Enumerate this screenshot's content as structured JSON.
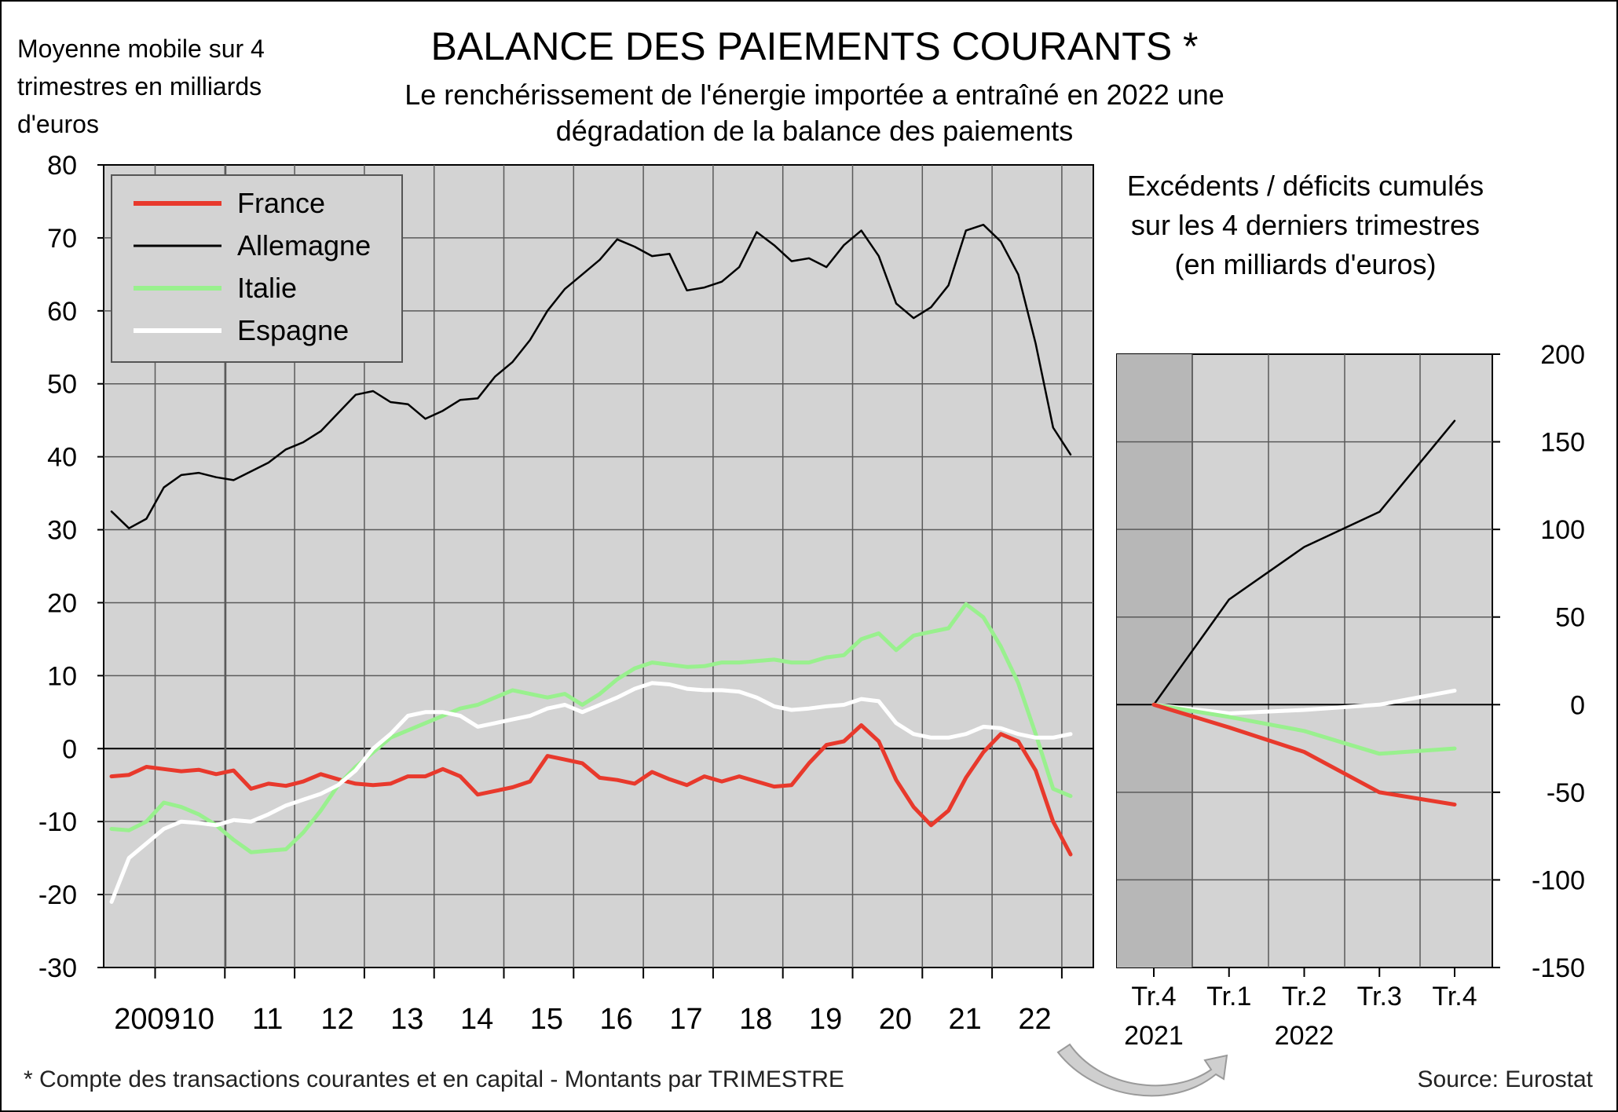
{
  "chart_data": [
    {
      "type": "line",
      "title": "BALANCE DES PAIEMENTS COURANTS *",
      "subtitle": "Le renchérissement de l'énergie importée a entraîné en 2022 une dégradation de la balance des paiements",
      "ylabel": "Moyenne mobile sur 4 trimestres en milliards d'euros",
      "ylim": [
        -30,
        80
      ],
      "yticks": [
        "-30",
        "-20",
        "-10",
        "0",
        "10",
        "20",
        "30",
        "40",
        "50",
        "60",
        "70",
        "80"
      ],
      "xticks": [
        "2009",
        "10",
        "11",
        "12",
        "13",
        "14",
        "15",
        "16",
        "17",
        "18",
        "19",
        "20",
        "21",
        "22"
      ],
      "x_start": "2008 T2",
      "x_end": "2022 T4",
      "grid": true,
      "legend": "top-left",
      "series": [
        {
          "name": "France",
          "color": "#e8392c",
          "values": [
            -3.8,
            -3.6,
            -2.5,
            -2.8,
            -3.1,
            -2.9,
            -3.5,
            -3.0,
            -5.5,
            -4.8,
            -5.1,
            -4.5,
            -3.5,
            -4.2,
            -4.8,
            -5.0,
            -4.8,
            -3.8,
            -3.8,
            -2.8,
            -3.8,
            -6.3,
            -5.8,
            -5.3,
            -4.5,
            -1.0,
            -1.5,
            -2.0,
            -4.0,
            -4.3,
            -4.8,
            -3.2,
            -4.2,
            -5.0,
            -3.8,
            -4.5,
            -3.8,
            -4.5,
            -5.2,
            -5.0,
            -2.0,
            0.5,
            1.0,
            3.2,
            1.0,
            -4.3,
            -8.0,
            -10.5,
            -8.5,
            -4.0,
            -0.5,
            2.0,
            1.0,
            -3.0,
            -10.0,
            -14.5
          ]
        },
        {
          "name": "Allemagne",
          "color": "#000000",
          "values": [
            32.5,
            30.2,
            31.5,
            35.8,
            37.5,
            37.8,
            37.2,
            36.8,
            38.0,
            39.2,
            41.0,
            42.0,
            43.5,
            46.0,
            48.5,
            49.0,
            47.5,
            47.2,
            45.2,
            46.3,
            47.8,
            48.0,
            51.0,
            53.0,
            56.0,
            60.0,
            63.0,
            65.0,
            67.0,
            69.8,
            68.8,
            67.5,
            67.8,
            62.8,
            63.2,
            64.0,
            66.0,
            70.8,
            69.0,
            66.8,
            67.2,
            66.0,
            69.0,
            71.0,
            67.5,
            61.0,
            59.0,
            60.5,
            63.5,
            71.0,
            71.8,
            69.5,
            65.0,
            55.5,
            44.0,
            40.3
          ]
        },
        {
          "name": "Italie",
          "color": "#99f08e",
          "values": [
            -11.0,
            -11.2,
            -10.0,
            -7.4,
            -8.0,
            -9.0,
            -10.5,
            -12.5,
            -14.2,
            -14.0,
            -13.8,
            -11.5,
            -8.5,
            -5.0,
            -2.5,
            -0.5,
            1.5,
            2.5,
            3.5,
            4.5,
            5.5,
            6.0,
            7.0,
            8.0,
            7.5,
            7.0,
            7.5,
            6.0,
            7.5,
            9.5,
            11.0,
            11.8,
            11.5,
            11.2,
            11.3,
            11.8,
            11.8,
            12.0,
            12.2,
            11.8,
            11.8,
            12.5,
            12.8,
            15.0,
            15.8,
            13.5,
            15.5,
            16.0,
            16.5,
            19.8,
            18.0,
            14.0,
            9.0,
            2.0,
            -5.5,
            -6.5
          ]
        },
        {
          "name": "Espagne",
          "color": "#ffffff",
          "values": [
            -21.0,
            -15.0,
            -13.0,
            -11.0,
            -10.0,
            -10.2,
            -10.5,
            -9.8,
            -10.0,
            -9.0,
            -7.8,
            -7.0,
            -6.2,
            -5.0,
            -3.0,
            0.0,
            2.0,
            4.5,
            5.0,
            5.0,
            4.5,
            3.0,
            3.5,
            4.0,
            4.5,
            5.5,
            6.0,
            5.0,
            6.0,
            7.0,
            8.2,
            9.0,
            8.8,
            8.2,
            8.0,
            8.0,
            7.8,
            7.0,
            5.8,
            5.3,
            5.5,
            5.8,
            6.0,
            6.8,
            6.5,
            3.5,
            2.0,
            1.5,
            1.5,
            2.0,
            3.0,
            2.8,
            2.0,
            1.5,
            1.5,
            2.0
          ]
        }
      ]
    },
    {
      "type": "line",
      "title": "Excédents / déficits cumulés sur les 4 derniers trimestres (en milliards d'euros)",
      "ylim": [
        -150,
        200
      ],
      "yticks": [
        "-150",
        "-100",
        "-50",
        "0",
        "50",
        "100",
        "150",
        "200"
      ],
      "categories": [
        "Tr.4",
        "Tr.1",
        "Tr.2",
        "Tr.3",
        "Tr.4"
      ],
      "year_labels": [
        "2021",
        "2022"
      ],
      "grid": true,
      "series": [
        {
          "name": "Allemagne",
          "color": "#000000",
          "values": [
            0,
            60,
            90,
            110,
            162
          ]
        },
        {
          "name": "Espagne",
          "color": "#ffffff",
          "values": [
            0,
            -5,
            -3,
            0,
            8
          ]
        },
        {
          "name": "Italie",
          "color": "#99f08e",
          "values": [
            0,
            -7,
            -15,
            -28,
            -25
          ]
        },
        {
          "name": "France",
          "color": "#e8392c",
          "values": [
            0,
            -13,
            -27,
            -50,
            -57
          ]
        }
      ]
    }
  ],
  "header": {
    "unit_label": "Moyenne mobile sur 4 trimestres en milliards d'euros"
  },
  "footer": {
    "footnote": "* Compte des transactions courantes et en capital - Montants par TRIMESTRE",
    "source": "Source: Eurostat"
  },
  "colors": {
    "plot_bg": "#d3d3d3",
    "inset_shade": "#b7b7b7",
    "grid": "#5a5a5a",
    "arrow": "#cfcfcf"
  }
}
